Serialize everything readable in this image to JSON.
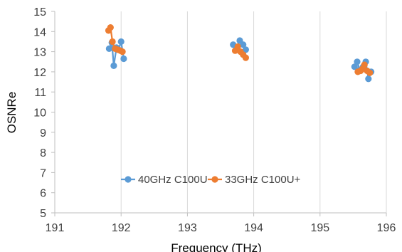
{
  "chart_data": {
    "type": "line",
    "title": "",
    "xlabel": "Frequency (THz)",
    "ylabel": "OSNRe",
    "xlim": [
      191,
      196
    ],
    "ylim": [
      5,
      15
    ],
    "xticks": [
      "191",
      "192",
      "193",
      "194",
      "195",
      "196"
    ],
    "yticks": [
      "5",
      "6",
      "7",
      "8",
      "9",
      "10",
      "11",
      "12",
      "13",
      "14",
      "15"
    ],
    "grid": "vertical",
    "legend": "bottom-center",
    "series": [
      {
        "name": "40GHz C100U",
        "color": "#5B9BD5",
        "points": [
          [
            191.82,
            13.15
          ],
          [
            191.86,
            13.45
          ],
          [
            191.89,
            12.3
          ],
          [
            191.93,
            13.2
          ],
          [
            191.96,
            13.1
          ],
          [
            192.0,
            13.5
          ],
          [
            192.04,
            12.65
          ],
          [
            193.69,
            13.35
          ],
          [
            193.74,
            13.2
          ],
          [
            193.79,
            13.55
          ],
          [
            193.84,
            13.35
          ],
          [
            193.88,
            13.1
          ],
          [
            195.52,
            12.25
          ],
          [
            195.56,
            12.5
          ],
          [
            195.6,
            12.1
          ],
          [
            195.65,
            12.25
          ],
          [
            195.69,
            12.5
          ],
          [
            195.73,
            11.65
          ],
          [
            195.77,
            12.0
          ]
        ]
      },
      {
        "name": "33GHz C100U+",
        "color": "#ED7D31",
        "points": [
          [
            191.81,
            14.05
          ],
          [
            191.84,
            14.2
          ],
          [
            191.87,
            13.5
          ],
          [
            191.91,
            13.15
          ],
          [
            191.95,
            13.1
          ],
          [
            191.99,
            13.05
          ],
          [
            192.02,
            13.0
          ],
          [
            193.72,
            13.05
          ],
          [
            193.76,
            13.25
          ],
          [
            193.8,
            13.0
          ],
          [
            193.84,
            12.85
          ],
          [
            193.88,
            12.7
          ],
          [
            195.57,
            12.0
          ],
          [
            195.61,
            12.05
          ],
          [
            195.64,
            12.15
          ],
          [
            195.67,
            12.35
          ],
          [
            195.71,
            12.05
          ],
          [
            195.75,
            11.95
          ]
        ]
      }
    ]
  }
}
